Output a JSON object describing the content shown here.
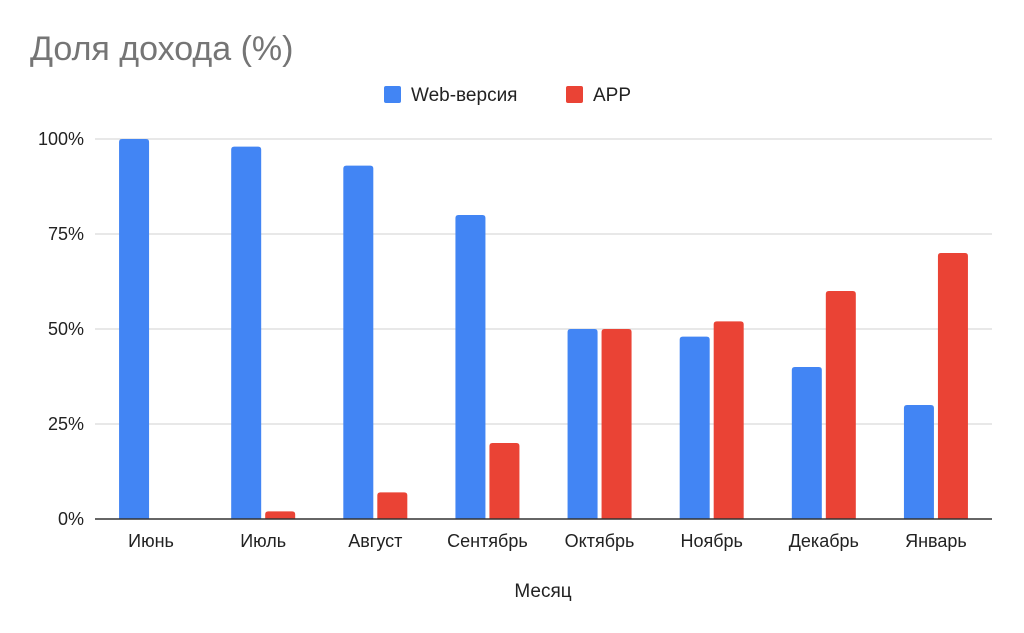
{
  "chart_data": {
    "type": "bar",
    "title": "Доля дохода (%)",
    "xlabel": "Месяц",
    "ylabel": "",
    "categories": [
      "Июнь",
      "Июль",
      "Август",
      "Сентябрь",
      "Октябрь",
      "Ноябрь",
      "Декабрь",
      "Январь"
    ],
    "series": [
      {
        "name": "Web-версия",
        "color": "#4285f4",
        "values": [
          100,
          98,
          93,
          80,
          50,
          48,
          40,
          30
        ]
      },
      {
        "name": "APP",
        "color": "#ea4335",
        "values": [
          0,
          2,
          7,
          20,
          50,
          52,
          60,
          70
        ]
      }
    ],
    "ylim": [
      0,
      100
    ],
    "yticks": [
      0,
      25,
      50,
      75,
      100
    ],
    "ytick_labels": [
      "0%",
      "25%",
      "50%",
      "75%",
      "100%"
    ],
    "grid": true,
    "legend_position": "top-center"
  }
}
